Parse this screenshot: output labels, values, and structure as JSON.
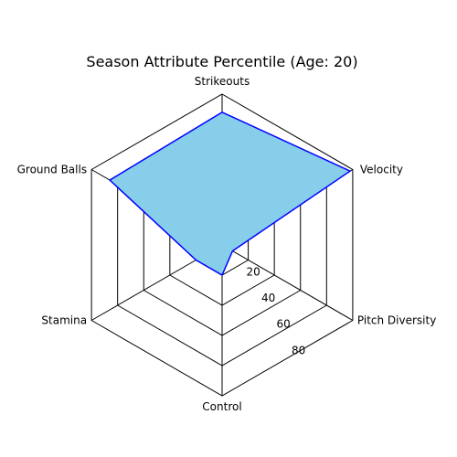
{
  "chart_data": {
    "type": "radar",
    "title": "Season Attribute Percentile (Age: 20)",
    "axes": [
      "Strikeouts",
      "Velocity",
      "Pitch Diversity",
      "Control",
      "Stamina",
      "Ground Balls"
    ],
    "values": [
      88,
      98,
      8,
      20,
      20,
      86
    ],
    "rlim": [
      0,
      100
    ],
    "ring_values": [
      20,
      40,
      60,
      80,
      100
    ],
    "radial_ticks": [
      "20",
      "40",
      "60",
      "80"
    ],
    "grid": true,
    "colors": {
      "fill": "#87CEEB",
      "line": "#0000FF",
      "grid": "#000000"
    }
  }
}
